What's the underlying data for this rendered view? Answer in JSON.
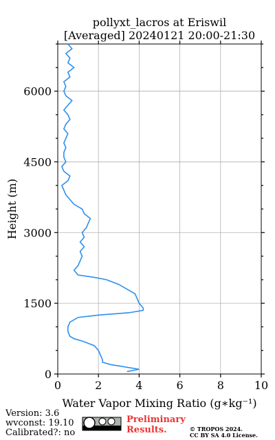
{
  "chart_data": {
    "type": "line",
    "title": [
      "pollyxt_lacros at Eriswil",
      "[Averaged] 20240121 20:00-21:30"
    ],
    "xlabel": "Water Vapor Mixing Ratio (g∗kg⁻¹)",
    "ylabel": "Height (m)",
    "xlim": [
      0,
      10
    ],
    "xticks": [
      0,
      2,
      4,
      6,
      8,
      10
    ],
    "ylim": [
      0,
      7000
    ],
    "yticks": [
      0,
      1500,
      3000,
      4500,
      6000
    ],
    "yminorticks": [
      500,
      1000,
      2000,
      2500,
      3500,
      4000,
      5000,
      5500,
      6500,
      7000
    ],
    "grid": true,
    "series": [
      {
        "color": "#2b8ff0",
        "x": [
          3.4,
          4.0,
          3.3,
          2.6,
          2.2,
          2.2,
          2.1,
          2.0,
          1.8,
          1.2,
          0.8,
          0.6,
          0.5,
          0.5,
          0.6,
          1.0,
          2.0,
          3.5,
          4.2,
          4.2,
          4.0,
          3.9,
          3.8,
          3.4,
          3.0,
          2.4,
          1.8,
          1.0,
          0.8,
          1.0,
          1.1,
          1.2,
          1.1,
          1.3,
          1.1,
          1.3,
          1.2,
          1.4,
          1.5,
          1.6,
          1.3,
          1.2,
          0.8,
          0.6,
          0.4,
          0.3,
          0.2,
          0.5,
          0.6,
          0.3,
          0.2,
          0.4,
          0.3,
          0.3,
          0.4,
          0.3,
          0.4,
          0.5,
          0.3,
          0.4,
          0.6,
          0.5,
          0.3,
          0.5,
          0.7,
          0.4,
          0.3,
          0.4,
          0.3,
          0.6,
          0.5,
          0.8,
          0.5,
          0.6,
          0.4,
          0.7,
          0.5
        ],
        "y": [
          50,
          100,
          150,
          200,
          250,
          300,
          400,
          500,
          600,
          700,
          750,
          800,
          900,
          1000,
          1100,
          1200,
          1250,
          1300,
          1350,
          1400,
          1500,
          1600,
          1700,
          1800,
          1900,
          2000,
          2050,
          2100,
          2200,
          2300,
          2400,
          2500,
          2600,
          2700,
          2800,
          2900,
          3000,
          3100,
          3200,
          3300,
          3400,
          3500,
          3600,
          3700,
          3800,
          3900,
          4000,
          4100,
          4200,
          4300,
          4400,
          4500,
          4600,
          4700,
          4800,
          4900,
          5000,
          5100,
          5200,
          5300,
          5400,
          5500,
          5600,
          5700,
          5800,
          5900,
          6000,
          6100,
          6200,
          6300,
          6400,
          6500,
          6600,
          6700,
          6800,
          6900,
          7000
        ]
      }
    ]
  },
  "footer": {
    "version": "Version: 3.6",
    "wvconst": "wvconst:  19.10",
    "calibrated": "Calibrated?: no",
    "preliminary": [
      "Preliminary",
      "Results."
    ],
    "copyright": [
      "© TROPOS 2024.",
      "CC BY SA 4.0 License."
    ]
  }
}
